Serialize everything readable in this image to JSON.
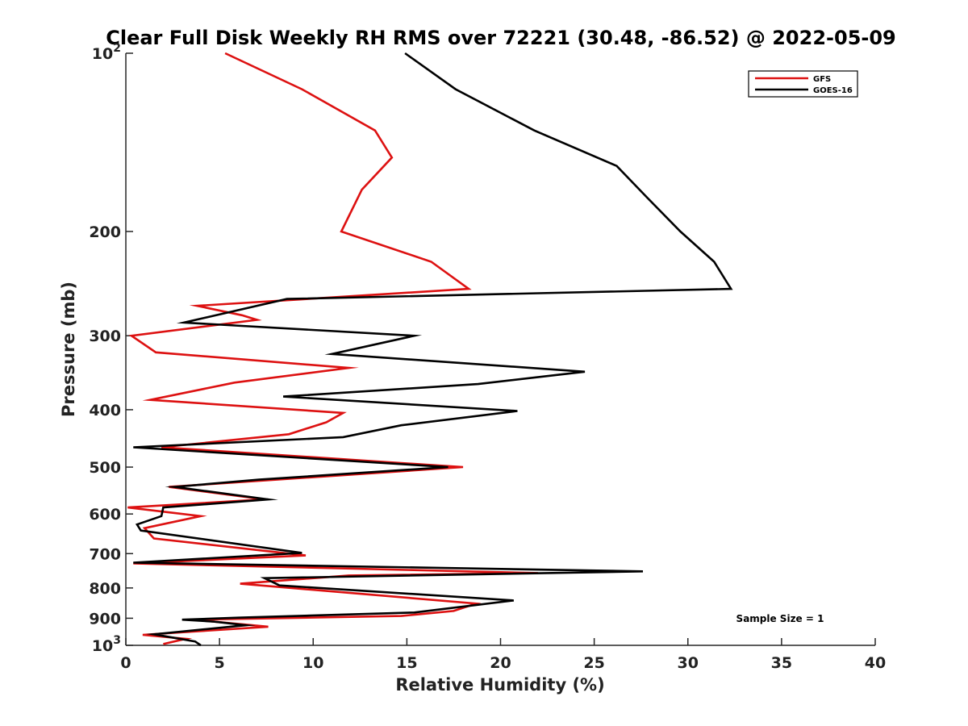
{
  "chart_data": {
    "type": "line",
    "title": "Clear Full Disk Weekly RH RMS over 72221 (30.48, -86.52) @ 2022-05-09",
    "xlabel": "Relative Humidity (%)",
    "ylabel": "Pressure (mb)",
    "xlim": [
      0,
      40
    ],
    "ylim": [
      100,
      1000
    ],
    "y_scale": "log",
    "y_reversed": true,
    "grid": false,
    "legend_position": "top-right",
    "x_ticks": [
      0,
      5,
      10,
      15,
      20,
      25,
      30,
      35,
      40
    ],
    "y_ticks": [
      {
        "value": 100,
        "label": "10",
        "exp": "2"
      },
      {
        "value": 200,
        "label": "200",
        "exp": ""
      },
      {
        "value": 300,
        "label": "300",
        "exp": ""
      },
      {
        "value": 400,
        "label": "400",
        "exp": ""
      },
      {
        "value": 500,
        "label": "500",
        "exp": ""
      },
      {
        "value": 600,
        "label": "600",
        "exp": ""
      },
      {
        "value": 700,
        "label": "700",
        "exp": ""
      },
      {
        "value": 800,
        "label": "800",
        "exp": ""
      },
      {
        "value": 900,
        "label": "900",
        "exp": ""
      },
      {
        "value": 1000,
        "label": "10",
        "exp": "3"
      }
    ],
    "series": [
      {
        "name": "GFS",
        "color": "#dd1111",
        "points": [
          [
            5.3,
            100
          ],
          [
            9.4,
            115
          ],
          [
            13.3,
            135
          ],
          [
            14.2,
            150
          ],
          [
            12.6,
            170
          ],
          [
            11.5,
            200
          ],
          [
            16.3,
            225
          ],
          [
            18.3,
            250
          ],
          [
            3.8,
            267
          ],
          [
            6.2,
            277
          ],
          [
            7.0,
            282
          ],
          [
            0.3,
            300
          ],
          [
            1.6,
            320
          ],
          [
            11.9,
            340
          ],
          [
            5.8,
            360
          ],
          [
            1.3,
            385
          ],
          [
            11.6,
            405
          ],
          [
            10.7,
            420
          ],
          [
            8.7,
            440
          ],
          [
            1.9,
            463
          ],
          [
            18.0,
            500
          ],
          [
            2.3,
            540
          ],
          [
            7.4,
            567
          ],
          [
            0.1,
            585
          ],
          [
            4.0,
            605
          ],
          [
            1.0,
            634
          ],
          [
            1.5,
            660
          ],
          [
            9.6,
            705
          ],
          [
            0.4,
            727
          ],
          [
            22.0,
            755
          ],
          [
            11.9,
            762
          ],
          [
            6.1,
            787
          ],
          [
            18.7,
            850
          ],
          [
            17.5,
            875
          ],
          [
            14.7,
            892
          ],
          [
            3.6,
            905
          ],
          [
            7.6,
            930
          ],
          [
            0.9,
            960
          ],
          [
            3.2,
            975
          ],
          [
            2.0,
            995
          ]
        ]
      },
      {
        "name": "GOES-16",
        "color": "#000000",
        "points": [
          [
            14.9,
            100
          ],
          [
            17.6,
            115
          ],
          [
            21.8,
            135
          ],
          [
            26.2,
            155
          ],
          [
            27.8,
            175
          ],
          [
            29.6,
            200
          ],
          [
            31.4,
            225
          ],
          [
            32.3,
            250
          ],
          [
            8.6,
            260
          ],
          [
            3.1,
            285
          ],
          [
            15.4,
            300
          ],
          [
            11.0,
            322
          ],
          [
            24.5,
            345
          ],
          [
            18.8,
            362
          ],
          [
            8.4,
            380
          ],
          [
            20.9,
            402
          ],
          [
            14.7,
            425
          ],
          [
            11.6,
            445
          ],
          [
            0.4,
            463
          ],
          [
            17.2,
            500
          ],
          [
            7.1,
            525
          ],
          [
            2.6,
            540
          ],
          [
            7.6,
            567
          ],
          [
            2.0,
            585
          ],
          [
            1.9,
            605
          ],
          [
            0.6,
            625
          ],
          [
            0.8,
            640
          ],
          [
            9.4,
            698
          ],
          [
            0.4,
            725
          ],
          [
            27.6,
            750
          ],
          [
            7.4,
            770
          ],
          [
            8.2,
            792
          ],
          [
            20.7,
            840
          ],
          [
            15.4,
            880
          ],
          [
            6.0,
            898
          ],
          [
            3.0,
            905
          ],
          [
            4.7,
            912
          ],
          [
            6.4,
            925
          ],
          [
            1.5,
            958
          ],
          [
            3.7,
            985
          ],
          [
            4.0,
            1000
          ]
        ]
      }
    ],
    "annotation": "Sample Size = 1"
  }
}
